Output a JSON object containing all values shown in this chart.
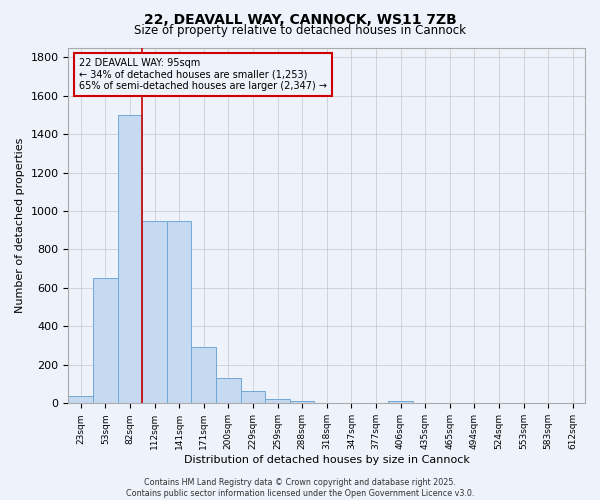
{
  "title": "22, DEAVALL WAY, CANNOCK, WS11 7ZB",
  "subtitle": "Size of property relative to detached houses in Cannock",
  "xlabel": "Distribution of detached houses by size in Cannock",
  "ylabel": "Number of detached properties",
  "footer_line1": "Contains HM Land Registry data © Crown copyright and database right 2025.",
  "footer_line2": "Contains public sector information licensed under the Open Government Licence v3.0.",
  "categories": [
    "23sqm",
    "53sqm",
    "82sqm",
    "112sqm",
    "141sqm",
    "171sqm",
    "200sqm",
    "229sqm",
    "259sqm",
    "288sqm",
    "318sqm",
    "347sqm",
    "377sqm",
    "406sqm",
    "435sqm",
    "465sqm",
    "494sqm",
    "524sqm",
    "553sqm",
    "583sqm",
    "612sqm"
  ],
  "values": [
    40,
    650,
    1500,
    950,
    950,
    295,
    130,
    65,
    25,
    10,
    0,
    0,
    0,
    10,
    0,
    0,
    0,
    0,
    0,
    0,
    0
  ],
  "bar_color": "#c5d9f1",
  "bar_edge_color": "#6fa8d6",
  "bar_linewidth": 0.7,
  "grid_color": "#c8c8c8",
  "background_color": "#eef2fb",
  "annotation_line1": "22 DEAVALL WAY: 95sqm",
  "annotation_line2": "← 34% of detached houses are smaller (1,253)",
  "annotation_line3": "65% of semi-detached houses are larger (2,347) →",
  "annotation_box_color": "#cc0000",
  "vline_x_index": 2.5,
  "vline_color": "#cc0000",
  "ylim": [
    0,
    1850
  ],
  "yticks": [
    0,
    200,
    400,
    600,
    800,
    1000,
    1200,
    1400,
    1600,
    1800
  ]
}
